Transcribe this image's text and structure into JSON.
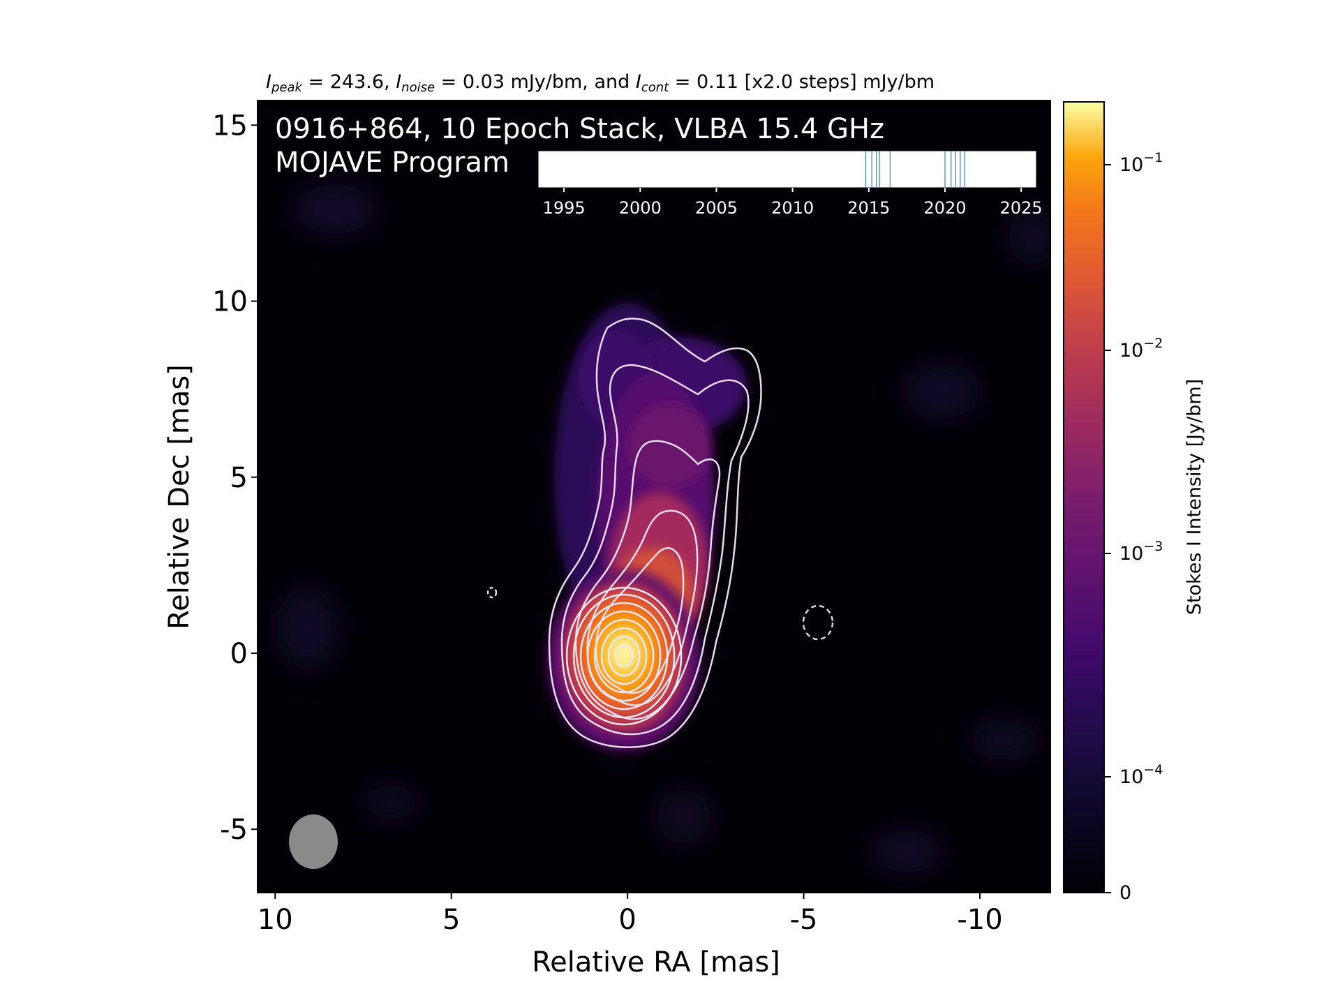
{
  "chart_data": {
    "type": "heatmap",
    "header": {
      "peak_sym": "I",
      "peak_sub": "peak",
      "peak_text": " = 243.6, ",
      "noise_sym": "I",
      "noise_sub": "noise",
      "noise_text": " = 0.03 mJy/bm, and ",
      "cont_sym": "I",
      "cont_sub": "cont",
      "cont_text": " = 0.11 [x2.0 steps] mJy/bm"
    },
    "title_line1": "0916+864, 10 Epoch Stack, VLBA 15.4 GHz",
    "title_line2": "MOJAVE Program",
    "xlabel": "Relative RA [mas]",
    "ylabel": "Relative Dec [mas]",
    "xlim": [
      10.5,
      -12
    ],
    "ylim": [
      -6.8,
      15.7
    ],
    "x_ticks": [
      10,
      5,
      0,
      -5,
      -10
    ],
    "x_tick_labels": [
      "10",
      "5",
      "0",
      "-5",
      "-10"
    ],
    "y_ticks": [
      15,
      10,
      5,
      0,
      -5
    ],
    "y_tick_labels": [
      "15",
      "10",
      "5",
      "0",
      "-5"
    ],
    "core": {
      "ra": 0.1,
      "dec": 0.0
    },
    "beam": {
      "ra": 9.0,
      "dec": -5.3,
      "major_mas": 1.55,
      "minor_mas": 1.4
    },
    "n_contours": 13,
    "negative_contours": [
      {
        "ra": 4.0,
        "dec": 1.8
      },
      {
        "ra": -5.2,
        "dec": 0.9
      }
    ],
    "epoch_timeline": {
      "xlim": [
        1993.3,
        2026.0
      ],
      "ticks": [
        1995,
        2000,
        2005,
        2010,
        2015,
        2020,
        2025
      ],
      "tick_labels": [
        "1995",
        "2000",
        "2005",
        "2010",
        "2015",
        "2020",
        "2025"
      ],
      "epochs": [
        2014.8,
        2015.2,
        2015.5,
        2015.7,
        2016.4,
        2020.0,
        2020.4,
        2020.7,
        2021.0,
        2021.3
      ]
    },
    "colorbar": {
      "label": "Stokes I Intensity [Jy/bm]",
      "scale": "log",
      "ticks": [
        0,
        0.0001,
        0.001,
        0.01,
        0.1
      ],
      "tick_base": [
        "0",
        "10",
        "10",
        "10",
        "10"
      ],
      "tick_exp": [
        "",
        "−4",
        "−3",
        "−2",
        "−1"
      ]
    }
  }
}
